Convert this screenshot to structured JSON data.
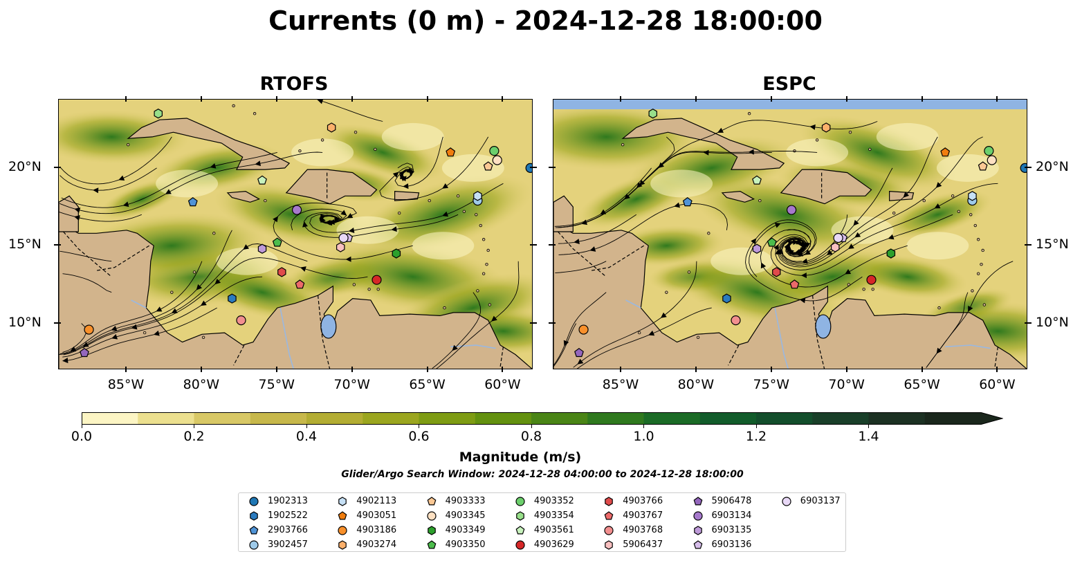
{
  "title": "Currents (0 m) - 2024-12-28 18:00:00",
  "panels": [
    {
      "name": "RTOFS"
    },
    {
      "name": "ESPC"
    }
  ],
  "lon_ticks": [
    "85°W",
    "80°W",
    "75°W",
    "70°W",
    "65°W",
    "60°W"
  ],
  "lat_ticks": [
    "20°N",
    "15°N",
    "10°N"
  ],
  "colorbar": {
    "title": "Magnitude (m/s)",
    "tick_labels": [
      "0.0",
      "0.2",
      "0.4",
      "0.6",
      "0.8",
      "1.0",
      "1.2",
      "1.4"
    ],
    "range": [
      0.0,
      1.6
    ],
    "colors": [
      "#fcf5c4",
      "#ece08f",
      "#d8c866",
      "#c7b84b",
      "#b3ad33",
      "#9ba61f",
      "#7e9c13",
      "#63910f",
      "#4a8516",
      "#2f791e",
      "#1b6b26",
      "#125c2b",
      "#134e2c",
      "#193f29",
      "#1c3123",
      "#1a271c"
    ]
  },
  "search_window": "Glider/Argo Search Window: 2024-12-28 04:00:00 to 2024-12-28 18:00:00",
  "legend": [
    {
      "id": "1902313",
      "marker": "circle",
      "color": "#1f77b4"
    },
    {
      "id": "1902522",
      "marker": "hexagon",
      "color": "#2b7bbf"
    },
    {
      "id": "2903766",
      "marker": "pentagon",
      "color": "#4f93d6"
    },
    {
      "id": "3902457",
      "marker": "circle",
      "color": "#9ecae9"
    },
    {
      "id": "4902113",
      "marker": "hexagon",
      "color": "#c6e0f5"
    },
    {
      "id": "4903051",
      "marker": "pentagon",
      "color": "#f07d0f"
    },
    {
      "id": "4903186",
      "marker": "circle",
      "color": "#f8902b"
    },
    {
      "id": "4903274",
      "marker": "hexagon",
      "color": "#fcb06b"
    },
    {
      "id": "4903333",
      "marker": "pentagon",
      "color": "#fbc894"
    },
    {
      "id": "4903345",
      "marker": "circle",
      "color": "#fde0c2"
    },
    {
      "id": "4903349",
      "marker": "hexagon",
      "color": "#2ca02c"
    },
    {
      "id": "4903350",
      "marker": "pentagon",
      "color": "#4cbc4c"
    },
    {
      "id": "4903352",
      "marker": "circle",
      "color": "#6ccf6c"
    },
    {
      "id": "4903354",
      "marker": "hexagon",
      "color": "#98df8a"
    },
    {
      "id": "4903561",
      "marker": "pentagon",
      "color": "#c8f2bd"
    },
    {
      "id": "4903629",
      "marker": "circle",
      "color": "#d62728"
    },
    {
      "id": "4903766",
      "marker": "hexagon",
      "color": "#e04b4b"
    },
    {
      "id": "4903767",
      "marker": "pentagon",
      "color": "#ec6a6a"
    },
    {
      "id": "4903768",
      "marker": "circle",
      "color": "#f28f8f"
    },
    {
      "id": "5906437",
      "marker": "hexagon",
      "color": "#f9c0c0"
    },
    {
      "id": "5906478",
      "marker": "pentagon",
      "color": "#9467bd"
    },
    {
      "id": "6903134",
      "marker": "circle",
      "color": "#a679cc"
    },
    {
      "id": "6903135",
      "marker": "hexagon",
      "color": "#be9ad9"
    },
    {
      "id": "6903136",
      "marker": "pentagon",
      "color": "#d6bdea"
    },
    {
      "id": "6903137",
      "marker": "circle",
      "color": "#e8d8f6"
    }
  ],
  "floats": [
    {
      "id": "1902313",
      "lon": -58.2,
      "lat": 20.0
    },
    {
      "id": "1902522",
      "lon": -78.0,
      "lat": 11.6
    },
    {
      "id": "2903766",
      "lon": -80.6,
      "lat": 17.8
    },
    {
      "id": "3902457",
      "lon": -61.7,
      "lat": 17.9
    },
    {
      "id": "4902113",
      "lon": -61.7,
      "lat": 18.2
    },
    {
      "id": "4903051",
      "lon": -63.5,
      "lat": 21.0
    },
    {
      "id": "4903186",
      "lon": -87.5,
      "lat": 9.6
    },
    {
      "id": "4903274",
      "lon": -71.4,
      "lat": 22.6
    },
    {
      "id": "4903333",
      "lon": -61.0,
      "lat": 20.1
    },
    {
      "id": "4903345",
      "lon": -60.4,
      "lat": 20.5
    },
    {
      "id": "4903349",
      "lon": -67.1,
      "lat": 14.5
    },
    {
      "id": "4903350",
      "lon": -75.0,
      "lat": 15.2
    },
    {
      "id": "4903352",
      "lon": -60.6,
      "lat": 21.1
    },
    {
      "id": "4903354",
      "lon": -82.9,
      "lat": 23.5
    },
    {
      "id": "4903561",
      "lon": -76.0,
      "lat": 19.2
    },
    {
      "id": "4903629",
      "lon": -68.4,
      "lat": 12.8
    },
    {
      "id": "4903766",
      "lon": -74.7,
      "lat": 13.3
    },
    {
      "id": "4903767",
      "lon": -73.5,
      "lat": 12.5
    },
    {
      "id": "4903768",
      "lon": -77.4,
      "lat": 10.2
    },
    {
      "id": "5906437",
      "lon": -70.8,
      "lat": 14.9
    },
    {
      "id": "5906478",
      "lon": -87.8,
      "lat": 8.1
    },
    {
      "id": "6903134",
      "lon": -73.7,
      "lat": 17.3
    },
    {
      "id": "6903135",
      "lon": -76.0,
      "lat": 14.8
    },
    {
      "id": "6903136",
      "lon": -70.3,
      "lat": 15.5
    },
    {
      "id": "6903137",
      "lon": -70.6,
      "lat": 15.5
    }
  ]
}
